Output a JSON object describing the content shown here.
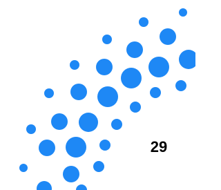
{
  "page_number": "29"
}
